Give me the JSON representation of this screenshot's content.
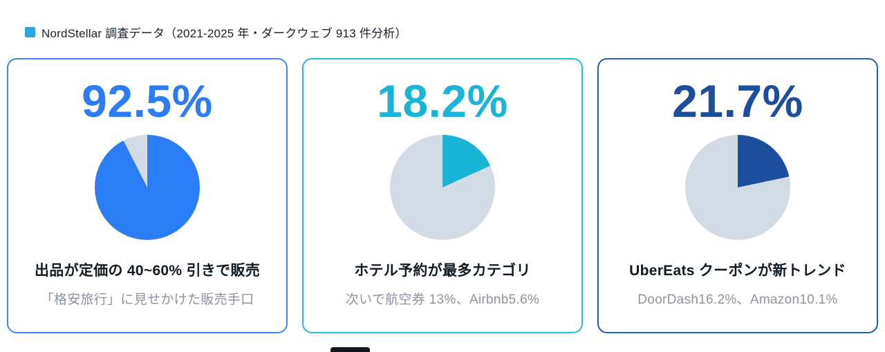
{
  "header": {
    "legend_color": "#2aa7e0",
    "title": "NordStellar 調査データ（2021-2025 年・ダークウェブ 913 件分析）"
  },
  "cards": [
    {
      "value": "92.5%",
      "percent": 92.5,
      "accent": "#2b7df6",
      "border": "#3e86f6",
      "title": "出品が定価の 40~60% 引きで販売",
      "subtitle": "「格安旅行」に見せかけた販売手口"
    },
    {
      "value": "18.2%",
      "percent": 18.2,
      "accent": "#1ab5d6",
      "border": "#29b7d7",
      "title": "ホテル予約が最多カテゴリ",
      "subtitle": "次いで航空券 13%、Airbnb5.6%"
    },
    {
      "value": "21.7%",
      "percent": 21.7,
      "accent": "#1c4e9b",
      "border": "#1f5fae",
      "title": "UberEats クーポンが新トレンド",
      "subtitle": "DoorDash16.2%、Amazon10.1%"
    }
  ],
  "chart_data": [
    {
      "type": "pie",
      "title": "出品が定価の 40~60% 引きで販売",
      "subtitle": "「格安旅行」に見せかけた販売手口",
      "labels": [
        "value",
        "remainder"
      ],
      "values": [
        92.5,
        7.5
      ],
      "colors": [
        "#2b7df6",
        "#d3dbe6"
      ],
      "data_label": "92.5%",
      "legend_position": "none",
      "start_angle_deg": 0,
      "direction": "clockwise"
    },
    {
      "type": "pie",
      "title": "ホテル予約が最多カテゴリ",
      "subtitle": "次いで航空券 13%、Airbnb5.6%",
      "labels": [
        "value",
        "remainder"
      ],
      "values": [
        18.2,
        81.8
      ],
      "colors": [
        "#1ab5d6",
        "#d3dbe6"
      ],
      "data_label": "18.2%",
      "legend_position": "none",
      "start_angle_deg": 0,
      "direction": "clockwise"
    },
    {
      "type": "pie",
      "title": "UberEats クーポンが新トレンド",
      "subtitle": "DoorDash16.2%、Amazon10.1%",
      "labels": [
        "value",
        "remainder"
      ],
      "values": [
        21.7,
        78.3
      ],
      "colors": [
        "#1c4e9b",
        "#d3dbe6"
      ],
      "data_label": "21.7%",
      "legend_position": "none",
      "start_angle_deg": 0,
      "direction": "clockwise"
    }
  ]
}
